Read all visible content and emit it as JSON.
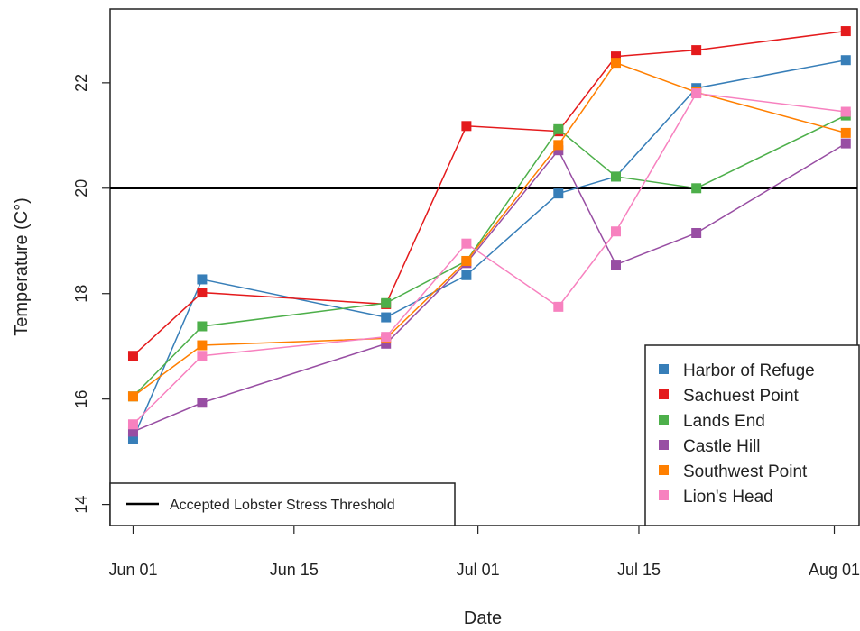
{
  "chart_data": {
    "type": "line",
    "xlabel": "Date",
    "ylabel": "Temperature (C°)",
    "x_ticks": [
      {
        "label": "Jun 01",
        "date": "2019-06-01"
      },
      {
        "label": "Jun 15",
        "date": "2019-06-15"
      },
      {
        "label": "Jul 01",
        "date": "2019-07-01"
      },
      {
        "label": "Jul 15",
        "date": "2019-07-15"
      },
      {
        "label": "Aug 01",
        "date": "2019-08-01"
      }
    ],
    "y_ticks": [
      14,
      16,
      18,
      20,
      22
    ],
    "xlim": [
      "2019-05-30",
      "2019-08-03"
    ],
    "ylim": [
      13.6,
      23.4
    ],
    "x": [
      "2019-06-01",
      "2019-06-07",
      "2019-06-23",
      "2019-06-30",
      "2019-07-08",
      "2019-07-13",
      "2019-07-20",
      "2019-08-02"
    ],
    "series": [
      {
        "name": "Harbor of Refuge",
        "color": "#377eb8",
        "values": [
          15.25,
          18.27,
          17.55,
          18.35,
          19.9,
          20.22,
          21.9,
          22.43
        ]
      },
      {
        "name": "Sachuest Point",
        "color": "#e41a1c",
        "values": [
          16.82,
          18.02,
          17.8,
          21.18,
          21.08,
          22.5,
          22.62,
          22.98
        ]
      },
      {
        "name": "Lands End",
        "color": "#4daf4a",
        "values": [
          16.05,
          17.38,
          17.82,
          18.62,
          21.12,
          20.22,
          20.0,
          21.38
        ]
      },
      {
        "name": "Castle Hill",
        "color": "#984ea3",
        "values": [
          15.38,
          15.93,
          17.05,
          18.58,
          20.72,
          18.55,
          19.15,
          20.85
        ]
      },
      {
        "name": "Southwest Point",
        "color": "#ff7f00",
        "values": [
          16.05,
          17.02,
          17.15,
          18.62,
          20.82,
          22.38,
          21.82,
          21.05
        ]
      },
      {
        "name": "Lion's Head",
        "color": "#f781bf",
        "values": [
          15.52,
          16.82,
          17.18,
          18.95,
          17.75,
          19.18,
          21.8,
          21.45
        ]
      }
    ],
    "threshold": {
      "label": "Accepted Lobster Stress Threshold",
      "value": 20,
      "color": "#000000"
    },
    "legend_position": "bottom-right",
    "threshold_legend_position": "bottom-left",
    "grid": false
  }
}
